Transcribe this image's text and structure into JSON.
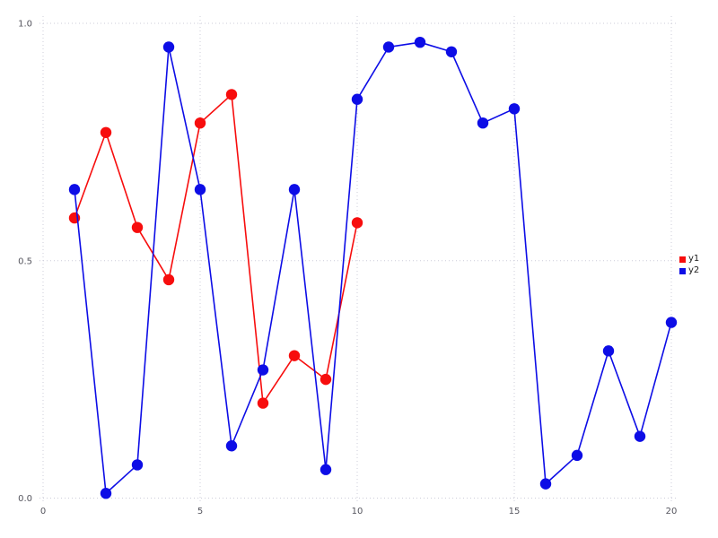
{
  "chart_data": {
    "type": "line",
    "title": "",
    "xlabel": "",
    "ylabel": "",
    "xlim": [
      0,
      20
    ],
    "ylim": [
      0.0,
      1.0
    ],
    "grid": "dotted",
    "grid_color": "#ccccd9",
    "tick_label_color": "#55555e",
    "legend_position": "right-middle",
    "x_ticks": [
      {
        "label": "0",
        "value": 0
      },
      {
        "label": "5",
        "value": 5
      },
      {
        "label": "10",
        "value": 10
      },
      {
        "label": "15",
        "value": 15
      },
      {
        "label": "20",
        "value": 20
      }
    ],
    "y_ticks": [
      {
        "label": "0.0",
        "value": 0.0
      },
      {
        "label": "0.5",
        "value": 0.5
      },
      {
        "label": "1.0",
        "value": 1.0
      }
    ],
    "series": [
      {
        "name": "y1",
        "color": "#f70d0d",
        "marker": "circle",
        "x": [
          1,
          2,
          3,
          4,
          5,
          6,
          7,
          8,
          9,
          10
        ],
        "values": [
          0.59,
          0.77,
          0.57,
          0.46,
          0.79,
          0.85,
          0.2,
          0.3,
          0.25,
          0.58
        ]
      },
      {
        "name": "y2",
        "color": "#0d0de6",
        "marker": "circle",
        "x": [
          1,
          2,
          3,
          4,
          5,
          6,
          7,
          8,
          9,
          10,
          11,
          12,
          13,
          14,
          15,
          16,
          17,
          18,
          19,
          20
        ],
        "values": [
          0.65,
          0.01,
          0.07,
          0.95,
          0.65,
          0.11,
          0.27,
          0.65,
          0.06,
          0.84,
          0.95,
          0.96,
          0.94,
          0.79,
          0.82,
          0.03,
          0.09,
          0.31,
          0.13,
          0.37
        ]
      }
    ]
  },
  "legend": {
    "items": [
      {
        "label": "y1",
        "color": "#f70d0d"
      },
      {
        "label": "y2",
        "color": "#0d0de6"
      }
    ]
  }
}
